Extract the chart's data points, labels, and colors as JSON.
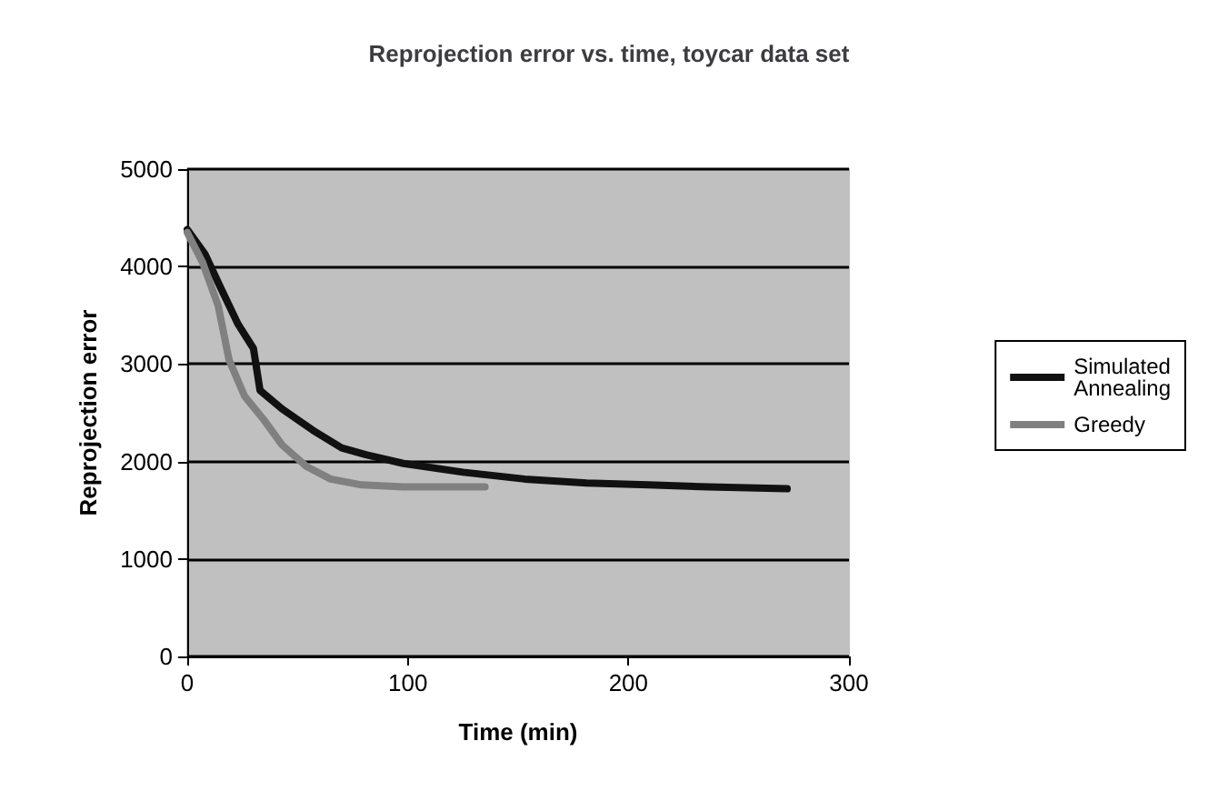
{
  "chart_data": {
    "type": "line",
    "title": "Reprojection error vs. time, toycar data set",
    "xlabel": "Time (min)",
    "ylabel": "Reprojection error",
    "xlim": [
      0,
      300
    ],
    "xticks": [
      0,
      100,
      200,
      300
    ],
    "ylim": [
      0,
      5000
    ],
    "yticks": [
      0,
      1000,
      2000,
      3000,
      4000,
      5000
    ],
    "grid": "y",
    "legend": "right",
    "marker": "none",
    "line_style": "solid",
    "series": [
      {
        "name": "Simulated Annealing",
        "color": "#111111",
        "x": [
          0,
          8,
          15,
          23,
          30,
          33,
          43,
          57,
          70,
          81,
          98,
          125,
          153,
          181,
          209,
          236,
          272
        ],
        "values": [
          4380,
          4130,
          3790,
          3410,
          3160,
          2730,
          2540,
          2320,
          2140,
          2070,
          1980,
          1890,
          1820,
          1780,
          1760,
          1740,
          1720
        ]
      },
      {
        "name": "Greedy",
        "color": "#808080",
        "x": [
          0,
          7,
          14,
          19,
          26,
          35,
          43,
          54,
          65,
          79,
          98,
          135
        ],
        "values": [
          4350,
          4040,
          3600,
          3040,
          2670,
          2420,
          2170,
          1950,
          1820,
          1760,
          1740,
          1740
        ]
      }
    ]
  }
}
